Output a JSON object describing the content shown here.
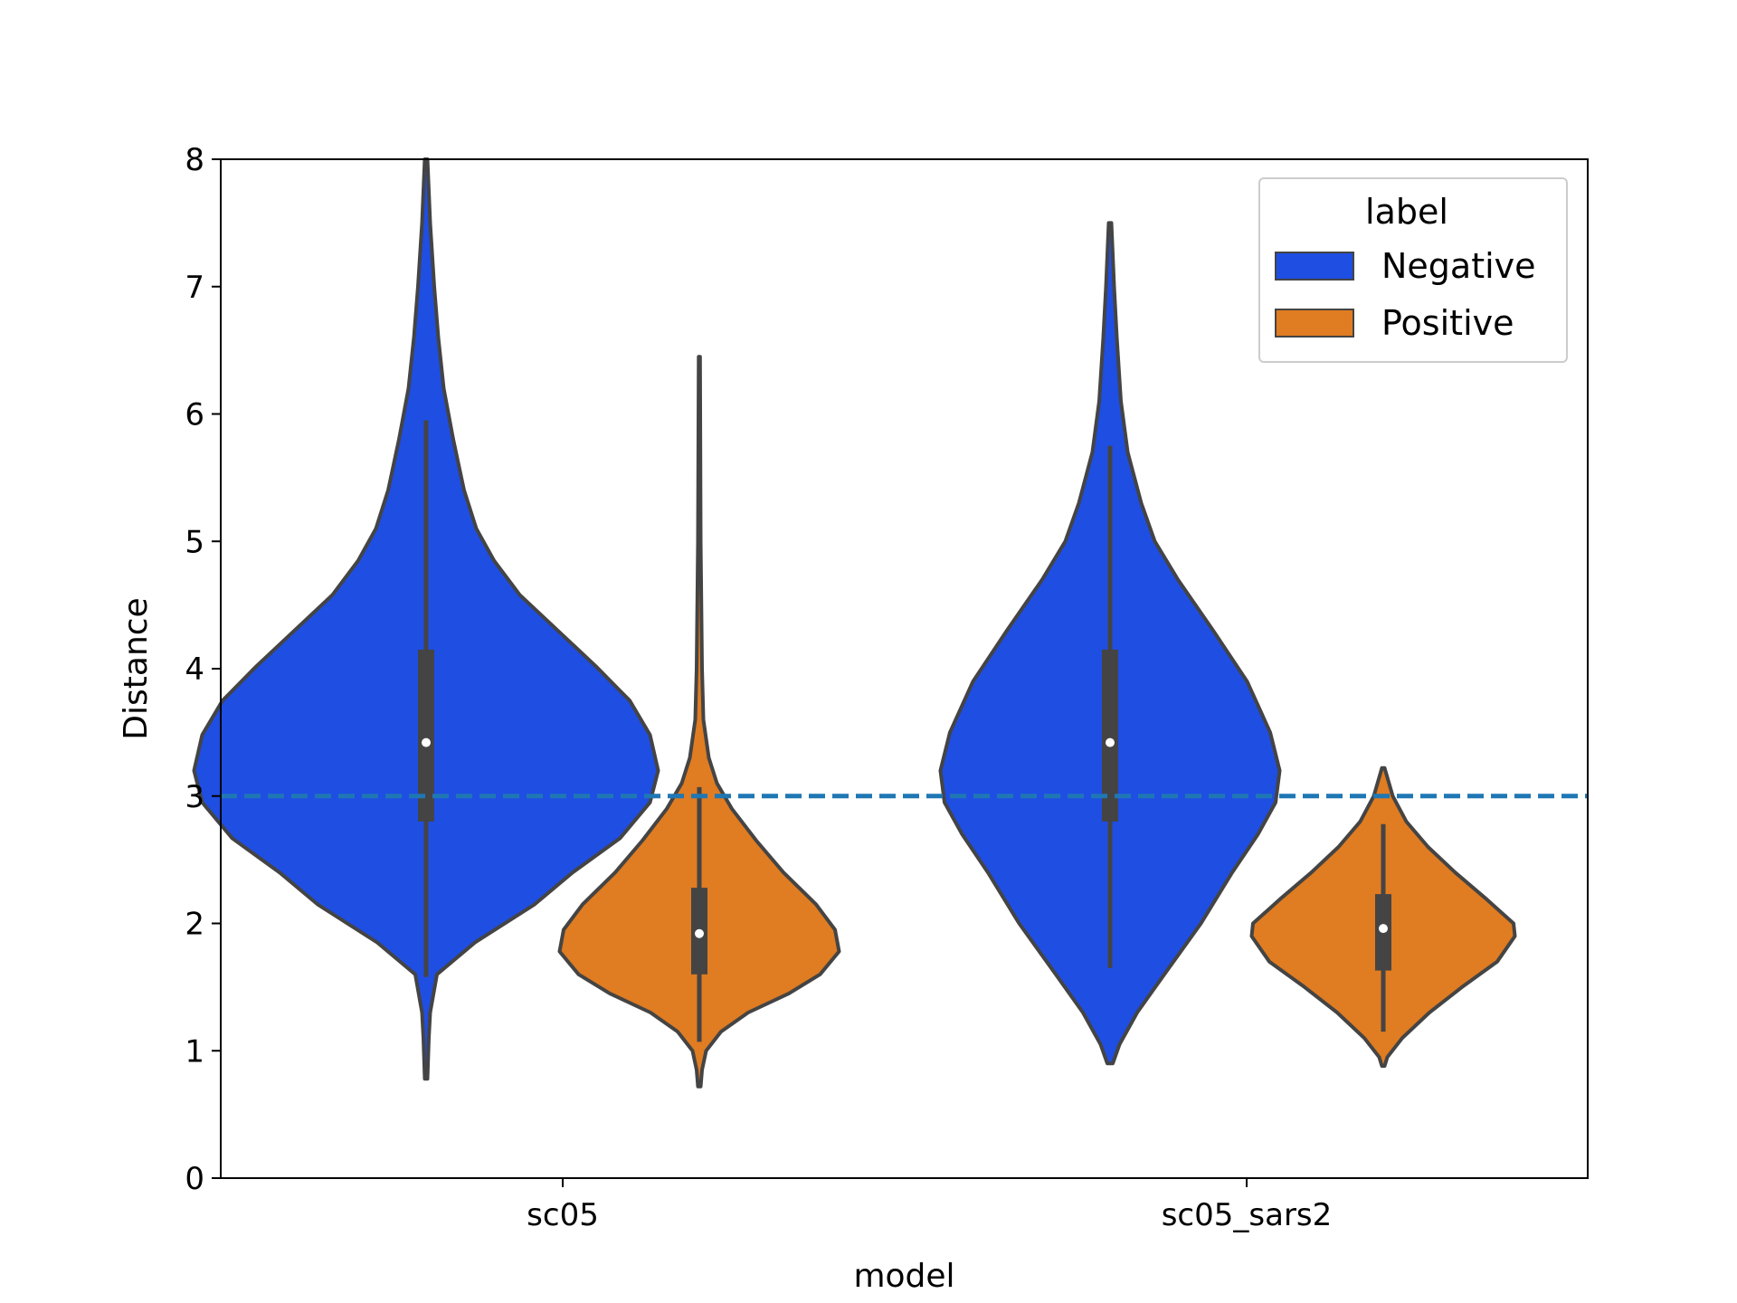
{
  "chart_data": {
    "type": "violin",
    "title": "",
    "xlabel": "model",
    "ylabel": "Distance",
    "ylim": [
      0,
      8
    ],
    "yticks": [
      0,
      1,
      2,
      3,
      4,
      5,
      6,
      7,
      8
    ],
    "categories": [
      "sc05",
      "sc05_sars2"
    ],
    "legend": {
      "title": "label",
      "placement": "top-right",
      "entries": [
        "Negative",
        "Positive"
      ]
    },
    "reference_line": {
      "y": 3,
      "style": "dashed",
      "color": "#1f77b4"
    },
    "colors": {
      "Negative": "#1f4ee3",
      "Positive": "#e07c21",
      "outline": "#444444"
    },
    "series": [
      {
        "name": "Negative",
        "violins": [
          {
            "category": "sc05",
            "min": 0.78,
            "max": 8.0,
            "q1": 2.8,
            "median": 3.42,
            "q3": 4.15,
            "whisker_low": 1.58,
            "whisker_high": 5.95,
            "profile": [
              [
                0.78,
                0.01
              ],
              [
                1.1,
                0.02
              ],
              [
                1.3,
                0.03
              ],
              [
                1.6,
                0.08
              ],
              [
                1.85,
                0.36
              ],
              [
                2.15,
                0.8
              ],
              [
                2.4,
                1.08
              ],
              [
                2.67,
                1.43
              ],
              [
                2.95,
                1.65
              ],
              [
                3.2,
                1.71
              ],
              [
                3.48,
                1.65
              ],
              [
                3.75,
                1.5
              ],
              [
                4.02,
                1.25
              ],
              [
                4.3,
                0.97
              ],
              [
                4.58,
                0.69
              ],
              [
                4.85,
                0.5
              ],
              [
                5.1,
                0.37
              ],
              [
                5.4,
                0.28
              ],
              [
                5.8,
                0.2
              ],
              [
                6.2,
                0.13
              ],
              [
                6.6,
                0.09
              ],
              [
                7.0,
                0.06
              ],
              [
                7.5,
                0.03
              ],
              [
                8.0,
                0.01
              ]
            ]
          },
          {
            "category": "sc05_sars2",
            "min": 0.9,
            "max": 7.5,
            "q1": 2.8,
            "median": 3.42,
            "q3": 4.15,
            "whisker_low": 1.65,
            "whisker_high": 5.75,
            "profile": [
              [
                0.9,
                0.02
              ],
              [
                1.05,
                0.07
              ],
              [
                1.3,
                0.2
              ],
              [
                1.6,
                0.4
              ],
              [
                2.0,
                0.67
              ],
              [
                2.4,
                0.9
              ],
              [
                2.7,
                1.09
              ],
              [
                2.95,
                1.22
              ],
              [
                3.2,
                1.25
              ],
              [
                3.5,
                1.18
              ],
              [
                3.9,
                1.01
              ],
              [
                4.3,
                0.76
              ],
              [
                4.7,
                0.5
              ],
              [
                5.0,
                0.33
              ],
              [
                5.3,
                0.23
              ],
              [
                5.7,
                0.13
              ],
              [
                6.1,
                0.08
              ],
              [
                6.6,
                0.05
              ],
              [
                7.0,
                0.03
              ],
              [
                7.5,
                0.01
              ]
            ]
          }
        ]
      },
      {
        "name": "Positive",
        "violins": [
          {
            "category": "sc05",
            "min": 0.72,
            "max": 6.45,
            "q1": 1.6,
            "median": 1.92,
            "q3": 2.28,
            "whisker_low": 1.07,
            "whisker_high": 3.07,
            "profile": [
              [
                0.72,
                0.01
              ],
              [
                0.85,
                0.02
              ],
              [
                1.0,
                0.05
              ],
              [
                1.15,
                0.16
              ],
              [
                1.3,
                0.36
              ],
              [
                1.45,
                0.66
              ],
              [
                1.6,
                0.89
              ],
              [
                1.78,
                1.03
              ],
              [
                1.95,
                1.0
              ],
              [
                2.15,
                0.86
              ],
              [
                2.4,
                0.62
              ],
              [
                2.65,
                0.42
              ],
              [
                2.9,
                0.24
              ],
              [
                3.1,
                0.13
              ],
              [
                3.3,
                0.07
              ],
              [
                3.6,
                0.03
              ],
              [
                4.0,
                0.02
              ],
              [
                5.0,
                0.01
              ],
              [
                6.45,
                0.005
              ]
            ]
          },
          {
            "category": "sc05_sars2",
            "min": 0.88,
            "max": 3.22,
            "q1": 1.63,
            "median": 1.96,
            "q3": 2.23,
            "whisker_low": 1.15,
            "whisker_high": 2.78,
            "profile": [
              [
                0.88,
                0.01
              ],
              [
                0.95,
                0.03
              ],
              [
                1.1,
                0.14
              ],
              [
                1.3,
                0.34
              ],
              [
                1.5,
                0.58
              ],
              [
                1.7,
                0.84
              ],
              [
                1.9,
                0.97
              ],
              [
                2.0,
                0.96
              ],
              [
                2.2,
                0.75
              ],
              [
                2.4,
                0.53
              ],
              [
                2.6,
                0.33
              ],
              [
                2.8,
                0.17
              ],
              [
                3.0,
                0.07
              ],
              [
                3.22,
                0.01
              ]
            ]
          }
        ]
      }
    ]
  }
}
